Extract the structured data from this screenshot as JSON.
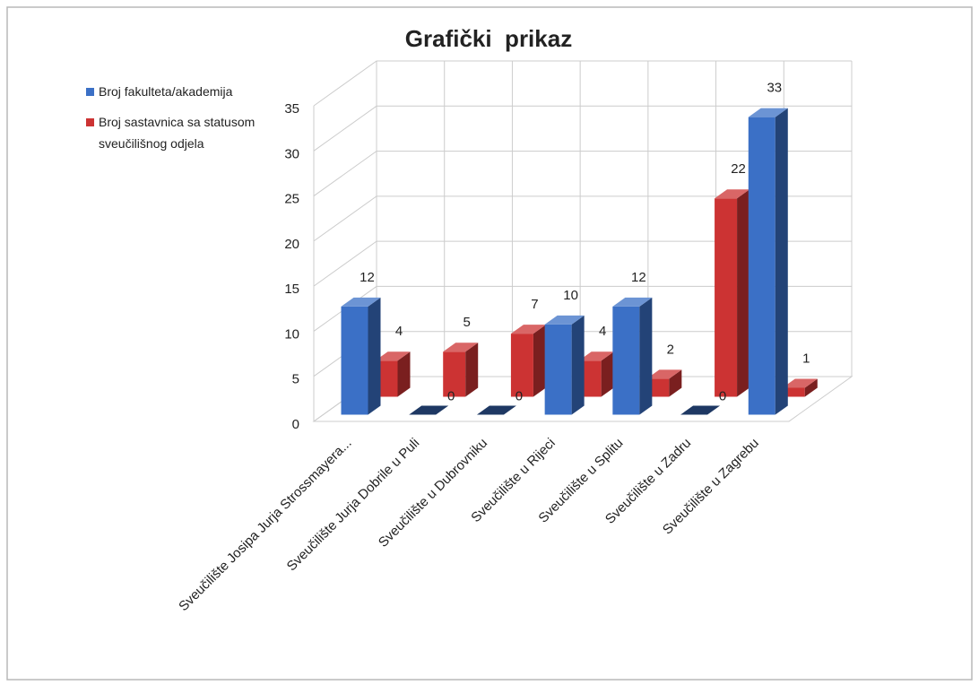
{
  "chart_data": {
    "type": "bar3d",
    "title": "Grafički  prikaz",
    "categories": [
      "Sveučilište Josipa Jurja Strossmayera...",
      "Sveučilište Jurja Dobrile u Puli",
      "Sveučilište u Dubrovniku",
      "Sveučilište u Rijeci",
      "Sveučilište u Splitu",
      "Sveučilište u Zadru",
      "Sveučilište u Zagrebu"
    ],
    "series": [
      {
        "name": "Broj fakulteta/akademija",
        "color": "#3b70c6",
        "values": [
          12,
          0,
          0,
          10,
          12,
          0,
          33
        ]
      },
      {
        "name": "Broj sastavnica sa statusom sveučilišnog odjela",
        "color": "#cc3333",
        "values": [
          4,
          5,
          7,
          4,
          2,
          22,
          1
        ]
      }
    ],
    "ylim": [
      0,
      35
    ],
    "yticks": [
      0,
      5,
      10,
      15,
      20,
      25,
      30,
      35
    ],
    "grid": true,
    "legend": "top-left"
  }
}
